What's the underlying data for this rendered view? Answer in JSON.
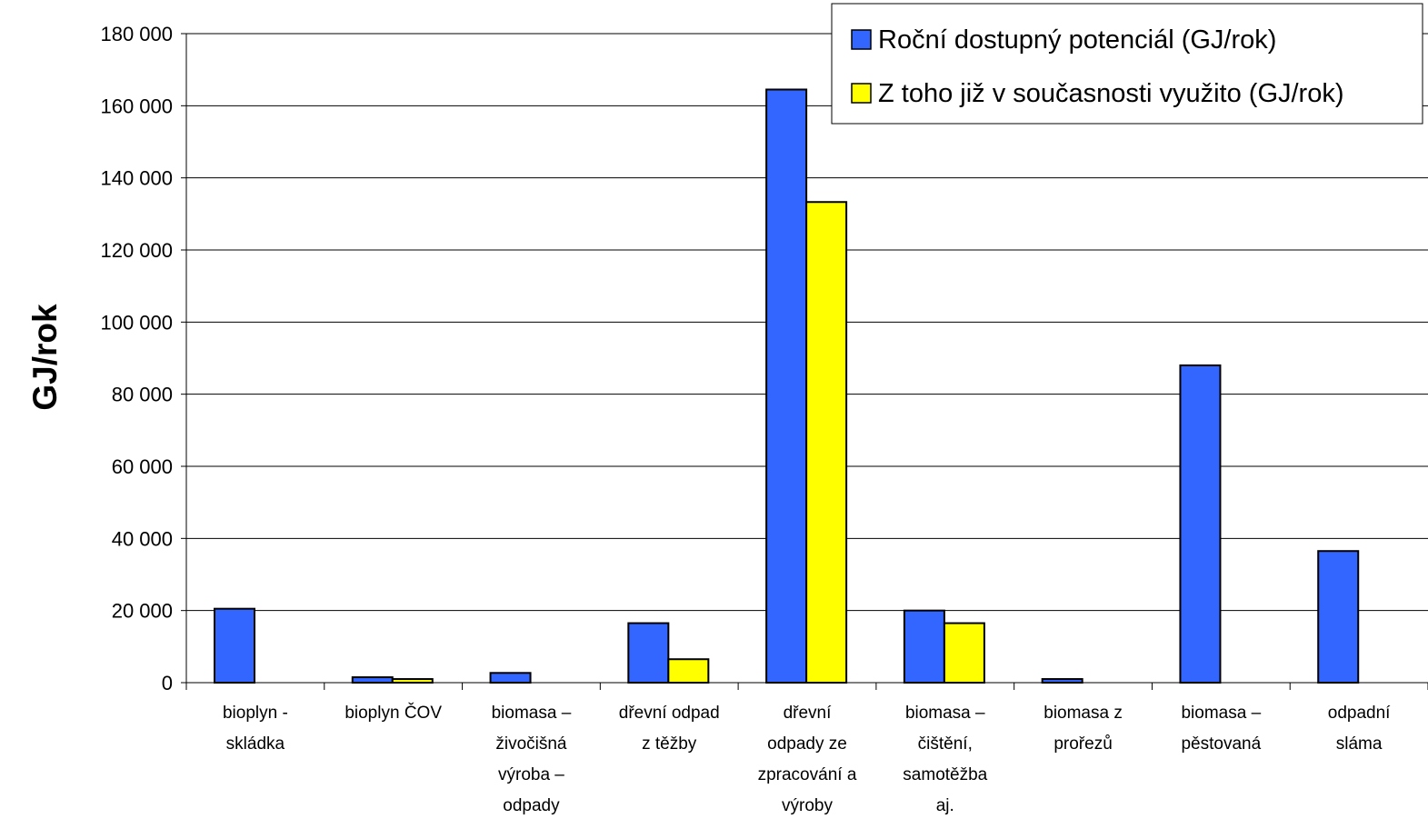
{
  "chart_data": {
    "type": "bar",
    "ylabel": "GJ/rok",
    "xlabel": "",
    "ylim": [
      0,
      180000
    ],
    "ytick_values": [
      0,
      20000,
      40000,
      60000,
      80000,
      100000,
      120000,
      140000,
      160000,
      180000
    ],
    "ytick_labels": [
      "0",
      "20 000",
      "40 000",
      "60 000",
      "80 000",
      "100 000",
      "120 000",
      "140 000",
      "160 000",
      "180 000"
    ],
    "grid": true,
    "legend_position": "top-right",
    "categories": [
      [
        "bioplyn -",
        "skládka"
      ],
      [
        "bioplyn ČOV"
      ],
      [
        "biomasa –",
        "živočišná",
        "výroba –",
        "odpady"
      ],
      [
        "dřevní odpad",
        "z těžby"
      ],
      [
        "dřevní",
        "odpady ze",
        "zpracování a",
        "výroby"
      ],
      [
        "biomasa –",
        "čištění,",
        "samotěžba",
        "aj."
      ],
      [
        "biomasa z",
        "prořezů"
      ],
      [
        "biomasa –",
        "pěstovaná"
      ],
      [
        "odpadní",
        "sláma"
      ]
    ],
    "series": [
      {
        "name": "Roční dostupný potenciál (GJ/rok)",
        "color": "#3366ff",
        "values": [
          20500,
          1500,
          2700,
          16500,
          164500,
          20000,
          1000,
          88000,
          36500
        ]
      },
      {
        "name": "Z toho již v současnosti využito (GJ/rok)",
        "color": "#ffff00",
        "values": [
          0,
          1000,
          0,
          6500,
          133300,
          16500,
          0,
          0,
          0
        ]
      }
    ]
  }
}
